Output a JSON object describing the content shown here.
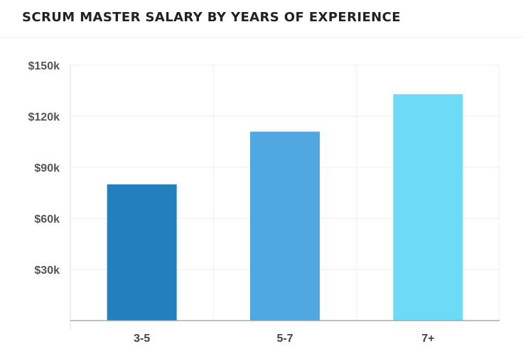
{
  "chart_data": {
    "type": "bar",
    "title": "SCRUM MASTER SALARY BY YEARS OF EXPERIENCE",
    "xlabel": "",
    "ylabel": "",
    "categories": [
      "3-5",
      "5-7",
      "7+"
    ],
    "values": [
      80000,
      111000,
      133000
    ],
    "colors": [
      "#2380bc",
      "#4fa8df",
      "#6ddbf7"
    ],
    "ylim": [
      0,
      150000
    ],
    "yticks": [
      {
        "value": 30000,
        "label": "$30k"
      },
      {
        "value": 60000,
        "label": "$60k"
      },
      {
        "value": 90000,
        "label": "$90k"
      },
      {
        "value": 120000,
        "label": "$120k"
      },
      {
        "value": 150000,
        "label": "$150k"
      }
    ],
    "grid": true,
    "legend": "none"
  }
}
